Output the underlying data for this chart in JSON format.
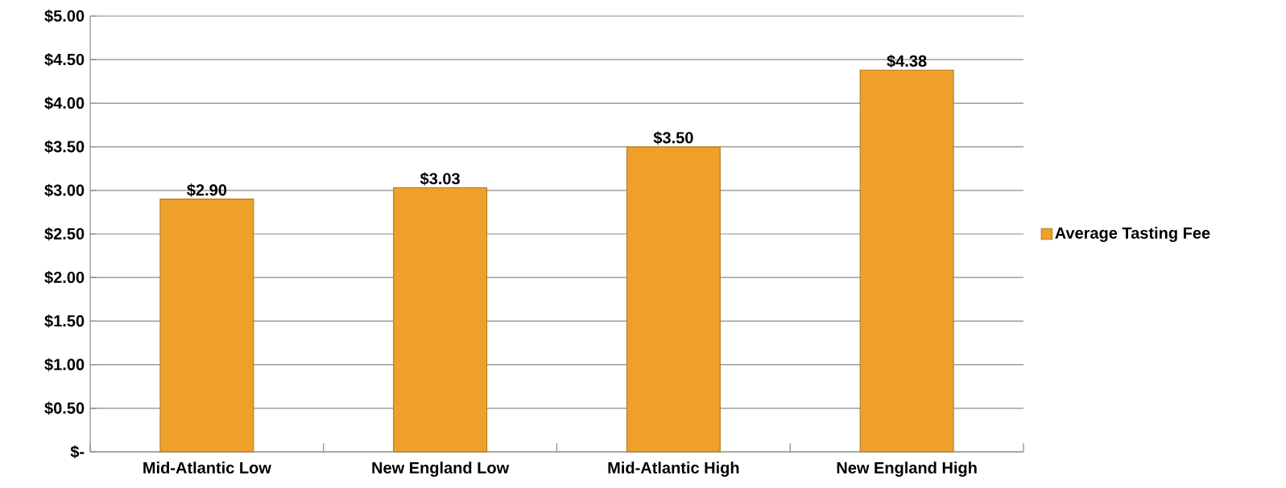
{
  "chart_data": {
    "type": "bar",
    "categories": [
      "Mid-Atlantic Low",
      "New England Low",
      "Mid-Atlantic High",
      "New England High"
    ],
    "series": [
      {
        "name": "Average Tasting Fee",
        "color": "#eea02a",
        "values": [
          2.9,
          3.03,
          3.5,
          4.38
        ],
        "value_labels": [
          "$2.90",
          "$3.03",
          "$3.50",
          "$4.38"
        ]
      }
    ],
    "ylim": [
      0,
      5
    ],
    "yticks": [
      {
        "value": 0,
        "label": "$-"
      },
      {
        "value": 0.5,
        "label": "$0.50"
      },
      {
        "value": 1,
        "label": "$1.00"
      },
      {
        "value": 1.5,
        "label": "$1.50"
      },
      {
        "value": 2,
        "label": "$2.00"
      },
      {
        "value": 2.5,
        "label": "$2.50"
      },
      {
        "value": 3,
        "label": "$3.00"
      },
      {
        "value": 3.5,
        "label": "$3.50"
      },
      {
        "value": 4,
        "label": "$4.00"
      },
      {
        "value": 4.5,
        "label": "$4.50"
      },
      {
        "value": 5,
        "label": "$5.00"
      }
    ],
    "grid": "y",
    "legend": "right"
  }
}
